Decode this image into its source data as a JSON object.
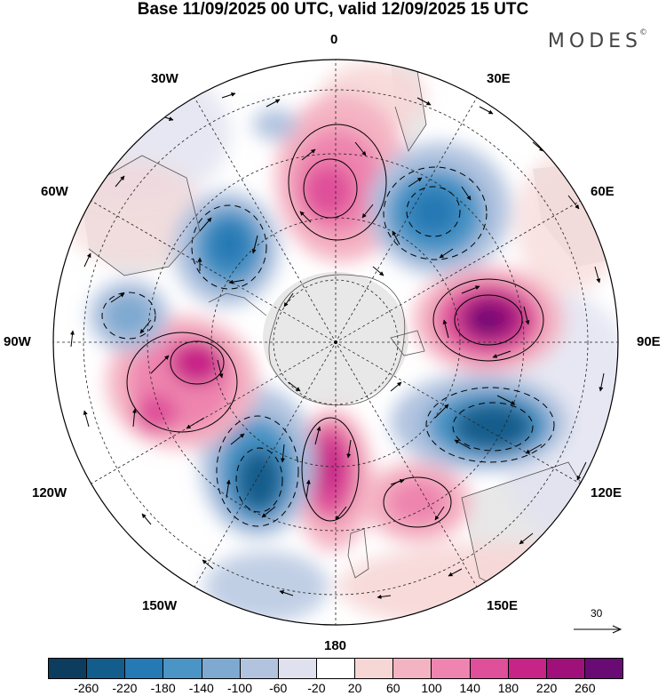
{
  "title": "Base 11/09/2025 00 UTC, valid 12/09/2025 15 UTC",
  "brand": "MODES",
  "brand_mark": "©",
  "meridian_labels": {
    "m0": "0",
    "m30e": "30E",
    "m60e": "60E",
    "m90e": "90E",
    "m120e": "120E",
    "m150e": "150E",
    "m180": "180",
    "m150w": "150W",
    "m120w": "120W",
    "m90w": "90W",
    "m60w": "60W",
    "m30w": "30W"
  },
  "vector_reference": "30",
  "colorbar": {
    "colors": [
      "#0c3d5e",
      "#135d8c",
      "#2579b4",
      "#4a94c6",
      "#7ea9d0",
      "#b1c3df",
      "#e0e1ef",
      "#ffffff",
      "#f7d6d6",
      "#f4b3c3",
      "#ee84af",
      "#df4f9a",
      "#c72487",
      "#a0107a",
      "#6a0a75"
    ],
    "ticks": [
      "-260",
      "-220",
      "-180",
      "-140",
      "-100",
      "-60",
      "-20",
      "20",
      "60",
      "100",
      "140",
      "180",
      "220",
      "260"
    ]
  },
  "chart_data": {
    "type": "heatmap",
    "projection": "south-polar stereographic",
    "title": "Base 11/09/2025 00 UTC, valid 12/09/2025 15 UTC",
    "field_levels": [
      -260,
      -220,
      -180,
      -140,
      -100,
      -60,
      -20,
      20,
      60,
      100,
      140,
      180,
      220,
      260
    ],
    "anomaly_centers": [
      {
        "sign": "positive",
        "lon": 10,
        "lat": -55,
        "peak": 200
      },
      {
        "sign": "negative",
        "lon": 45,
        "lat": -55,
        "peak": -220
      },
      {
        "sign": "positive",
        "lon": 82,
        "lat": -50,
        "peak": 260
      },
      {
        "sign": "negative",
        "lon": 118,
        "lat": -52,
        "peak": -260
      },
      {
        "sign": "positive",
        "lon": 150,
        "lat": -55,
        "peak": 160
      },
      {
        "sign": "positive",
        "lon": 175,
        "lat": -57,
        "peak": 220
      },
      {
        "sign": "negative",
        "lon": -160,
        "lat": -52,
        "peak": -260
      },
      {
        "sign": "positive",
        "lon": -110,
        "lat": -50,
        "peak": 220
      },
      {
        "sign": "negative",
        "lon": -85,
        "lat": -40,
        "peak": -100
      },
      {
        "sign": "negative",
        "lon": -45,
        "lat": -58,
        "peak": -220
      }
    ],
    "vector_reference_speed": 30
  }
}
